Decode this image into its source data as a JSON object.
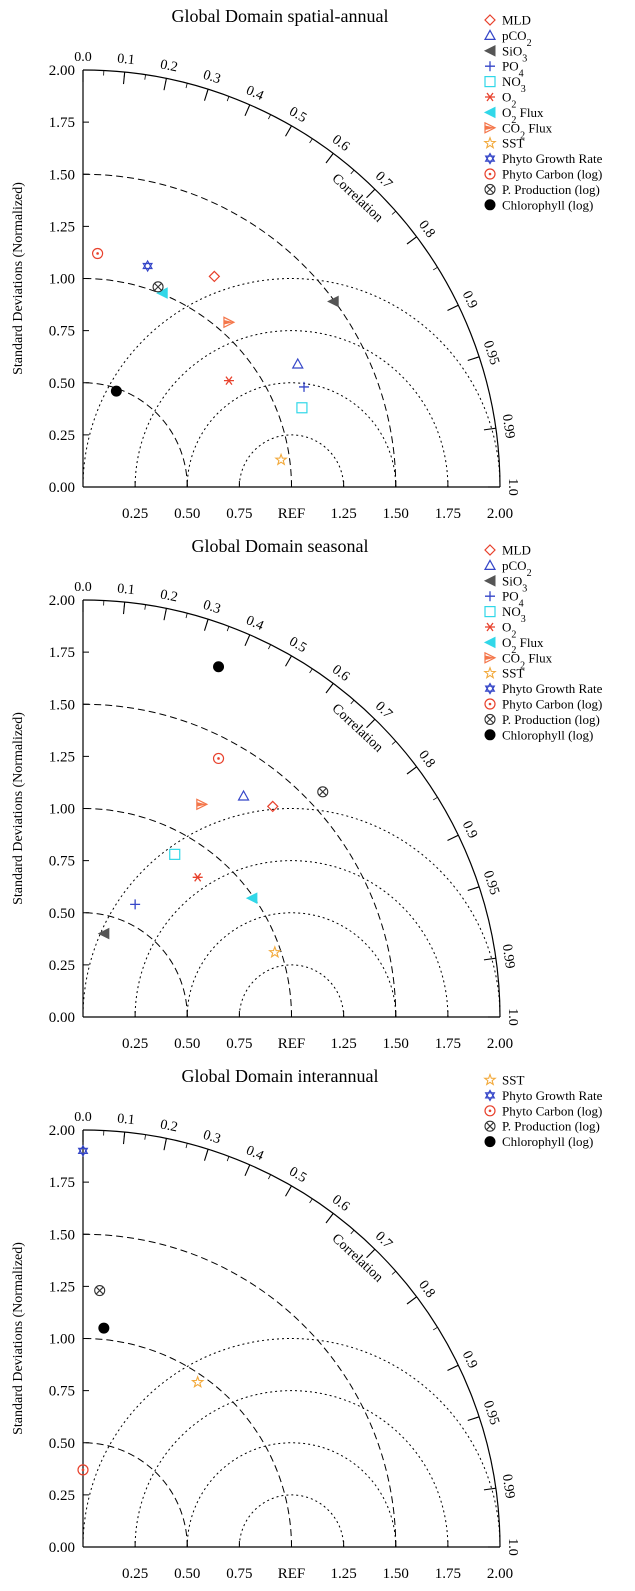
{
  "chart_data": [
    {
      "type": "scatter",
      "title": "Global Domain spatial-annual",
      "ylabel": "Standard Deviations (Normalized)",
      "corr_label": "Correlation",
      "std_ticks": [
        "0.00",
        "0.25",
        "0.50",
        "0.75",
        "1.00",
        "1.25",
        "1.50",
        "1.75",
        "2.00"
      ],
      "x_ticks": [
        "0.25",
        "0.50",
        "0.75",
        "REF",
        "1.25",
        "1.50",
        "1.75",
        "2.00"
      ],
      "corr_ticks": [
        "0.0",
        "0.1",
        "0.2",
        "0.3",
        "0.4",
        "0.5",
        "0.6",
        "0.7",
        "0.8",
        "0.9",
        "0.95",
        "0.99",
        "1.0"
      ],
      "std_range": [
        0,
        2
      ],
      "legend_position": "top-right",
      "series": [
        {
          "name": "MLD",
          "marker": "diamond",
          "color": "#e8412c",
          "x": 0.63,
          "y": 1.01
        },
        {
          "name": "pCO2",
          "marker": "triangle",
          "color": "#3546c8",
          "x": 1.03,
          "y": 0.59
        },
        {
          "name": "SiO3",
          "marker": "tri-left-filled",
          "color": "#555555",
          "x": 1.2,
          "y": 0.89
        },
        {
          "name": "PO4",
          "marker": "plus",
          "color": "#3546c8",
          "x": 1.06,
          "y": 0.48
        },
        {
          "name": "NO3",
          "marker": "square",
          "color": "#31d7e8",
          "x": 1.05,
          "y": 0.38
        },
        {
          "name": "O2",
          "marker": "asterisk",
          "color": "#e8412c",
          "x": 0.7,
          "y": 0.51
        },
        {
          "name": "O2 Flux",
          "marker": "tri-left-filled",
          "color": "#31d7e8",
          "x": 0.38,
          "y": 0.93
        },
        {
          "name": "CO2 Flux",
          "marker": "tri-right-half",
          "color": "#f4764a",
          "x": 0.7,
          "y": 0.79
        },
        {
          "name": "SST",
          "marker": "star",
          "color": "#f2a93b",
          "x": 0.95,
          "y": 0.13
        },
        {
          "name": "Phyto Growth Rate",
          "marker": "hexagram",
          "color": "#3546c8",
          "x": 0.31,
          "y": 1.06
        },
        {
          "name": "Phyto Carbon (log)",
          "marker": "circle-dot",
          "color": "#e8412c",
          "x": 0.07,
          "y": 1.12
        },
        {
          "name": "P. Production (log)",
          "marker": "circle-x",
          "color": "#333333",
          "x": 0.36,
          "y": 0.96
        },
        {
          "name": "Chlorophyll (log)",
          "marker": "circle-filled",
          "color": "#000000",
          "x": 0.16,
          "y": 0.46
        }
      ]
    },
    {
      "type": "scatter",
      "title": "Global Domain seasonal",
      "ylabel": "Standard Deviations (Normalized)",
      "corr_label": "Correlation",
      "std_ticks": [
        "0.00",
        "0.25",
        "0.50",
        "0.75",
        "1.00",
        "1.25",
        "1.50",
        "1.75",
        "2.00"
      ],
      "x_ticks": [
        "0.25",
        "0.50",
        "0.75",
        "REF",
        "1.25",
        "1.50",
        "1.75",
        "2.00"
      ],
      "corr_ticks": [
        "0.0",
        "0.1",
        "0.2",
        "0.3",
        "0.4",
        "0.5",
        "0.6",
        "0.7",
        "0.8",
        "0.9",
        "0.95",
        "0.99",
        "1.0"
      ],
      "std_range": [
        0,
        2
      ],
      "legend_position": "top-right",
      "series": [
        {
          "name": "MLD",
          "marker": "diamond",
          "color": "#e8412c",
          "x": 0.91,
          "y": 1.01
        },
        {
          "name": "pCO2",
          "marker": "triangle",
          "color": "#3546c8",
          "x": 0.77,
          "y": 1.06
        },
        {
          "name": "SiO3",
          "marker": "tri-left-filled",
          "color": "#555555",
          "x": 0.1,
          "y": 0.4
        },
        {
          "name": "PO4",
          "marker": "plus",
          "color": "#3546c8",
          "x": 0.25,
          "y": 0.54
        },
        {
          "name": "NO3",
          "marker": "square",
          "color": "#31d7e8",
          "x": 0.44,
          "y": 0.78
        },
        {
          "name": "O2",
          "marker": "asterisk",
          "color": "#e8412c",
          "x": 0.55,
          "y": 0.67
        },
        {
          "name": "O2 Flux",
          "marker": "tri-left-filled",
          "color": "#31d7e8",
          "x": 0.81,
          "y": 0.57
        },
        {
          "name": "CO2 Flux",
          "marker": "tri-right-half",
          "color": "#f4764a",
          "x": 0.57,
          "y": 1.02
        },
        {
          "name": "SST",
          "marker": "star",
          "color": "#f2a93b",
          "x": 0.92,
          "y": 0.31
        },
        {
          "name": "Phyto Carbon (log)",
          "marker": "circle-dot",
          "color": "#e8412c",
          "x": 0.65,
          "y": 1.24
        },
        {
          "name": "P. Production (log)",
          "marker": "circle-x",
          "color": "#333333",
          "x": 1.15,
          "y": 1.08
        },
        {
          "name": "Chlorophyll (log)",
          "marker": "circle-filled",
          "color": "#000000",
          "x": 0.65,
          "y": 1.68
        }
      ],
      "legend": [
        "MLD",
        "pCO2",
        "SiO3",
        "PO4",
        "NO3",
        "O2",
        "O2 Flux",
        "CO2 Flux",
        "SST",
        "Phyto Growth Rate",
        "Phyto Carbon (log)",
        "P. Production (log)",
        "Chlorophyll (log)"
      ]
    },
    {
      "type": "scatter",
      "title": "Global Domain interannual",
      "ylabel": "Standard Deviations (Normalized)",
      "corr_label": "Correlation",
      "std_ticks": [
        "0.00",
        "0.25",
        "0.50",
        "0.75",
        "1.00",
        "1.25",
        "1.50",
        "1.75",
        "2.00"
      ],
      "x_ticks": [
        "0.25",
        "0.50",
        "0.75",
        "REF",
        "1.25",
        "1.50",
        "1.75",
        "2.00"
      ],
      "corr_ticks": [
        "0.0",
        "0.1",
        "0.2",
        "0.3",
        "0.4",
        "0.5",
        "0.6",
        "0.7",
        "0.8",
        "0.9",
        "0.95",
        "0.99",
        "1.0"
      ],
      "std_range": [
        0,
        2
      ],
      "legend_position": "top-right",
      "series": [
        {
          "name": "SST",
          "marker": "star",
          "color": "#f2a93b",
          "x": 0.55,
          "y": 0.79
        },
        {
          "name": "Phyto Growth Rate",
          "marker": "hexagram",
          "color": "#3546c8",
          "x": 0.0,
          "y": 1.9
        },
        {
          "name": "Phyto Carbon (log)",
          "marker": "circle-dot",
          "color": "#e8412c",
          "x": 0.0,
          "y": 0.37
        },
        {
          "name": "P. Production (log)",
          "marker": "circle-x",
          "color": "#333333",
          "x": 0.08,
          "y": 1.23
        },
        {
          "name": "Chlorophyll (log)",
          "marker": "circle-filled",
          "color": "#000000",
          "x": 0.1,
          "y": 1.05
        }
      ]
    }
  ]
}
